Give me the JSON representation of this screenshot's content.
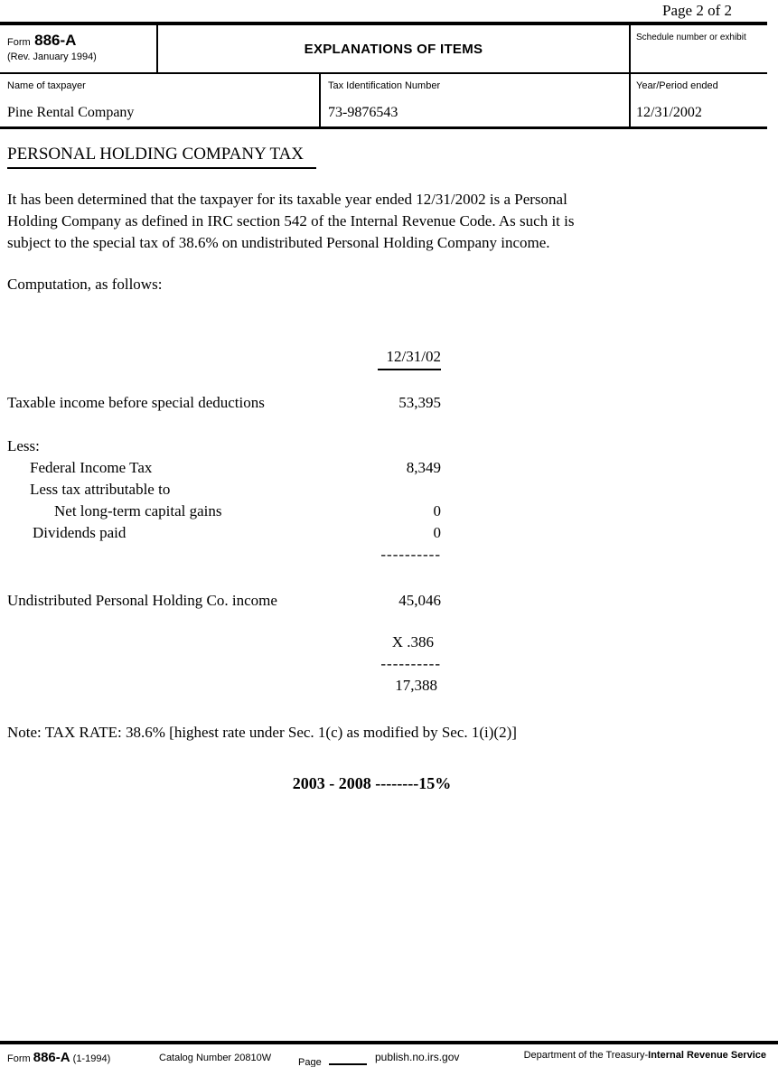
{
  "page_indicator": "Page 2 of 2",
  "header": {
    "form_label": "Form",
    "form_number": "886-A",
    "revision": "(Rev. January 1994)",
    "title": "EXPLANATIONS OF ITEMS",
    "schedule_label": "Schedule number or exhibit",
    "name_label": "Name of taxpayer",
    "name_value": "Pine Rental Company",
    "tin_label": "Tax Identification Number",
    "tin_value": "73-9876543",
    "period_label": "Year/Period ended",
    "period_value": "12/31/2002"
  },
  "body": {
    "section_heading": "PERSONAL HOLDING COMPANY TAX",
    "intro_lines": [
      "It has been determined that the taxpayer for its taxable year ended 12/31/2002 is a Personal",
      "Holding Company as defined in IRC section 542 of the Internal Revenue Code.  As such it is",
      "subject to the special tax of 38.6% on undistributed Personal Holding Company income."
    ],
    "computation_intro": "Computation, as follows:",
    "note": "Note: TAX RATE: 38.6% [highest rate under Sec. 1(c) as modified by Sec. 1(i)(2)]",
    "future_rate": "2003 - 2008 --------15%"
  },
  "computation": {
    "column_header": "12/31/02",
    "rows": {
      "taxable_income": {
        "label": "Taxable income before special deductions",
        "amount": "53,395"
      },
      "less": {
        "label": "Less:"
      },
      "federal_tax": {
        "label": "Federal Income Tax",
        "amount": "8,349"
      },
      "less_attributable": {
        "label": "Less tax attributable to"
      },
      "capital_gains": {
        "label": "Net long-term capital gains",
        "amount": "0"
      },
      "dividends_paid": {
        "label": "Dividends paid",
        "amount": "0"
      }
    },
    "divider": "----------",
    "undistributed": {
      "label": "Undistributed Personal Holding Co. income",
      "amount": "45,046"
    },
    "multiplier": "X .386",
    "result": "17,388"
  },
  "footer": {
    "form_label": "Form",
    "form_number": "886-A",
    "revision": "(1-1994)",
    "catalog": "Catalog Number 20810W",
    "page_label": "Page",
    "website": "publish.no.irs.gov",
    "department": "Department of the Treasury-",
    "agency": "Internal Revenue Service"
  }
}
